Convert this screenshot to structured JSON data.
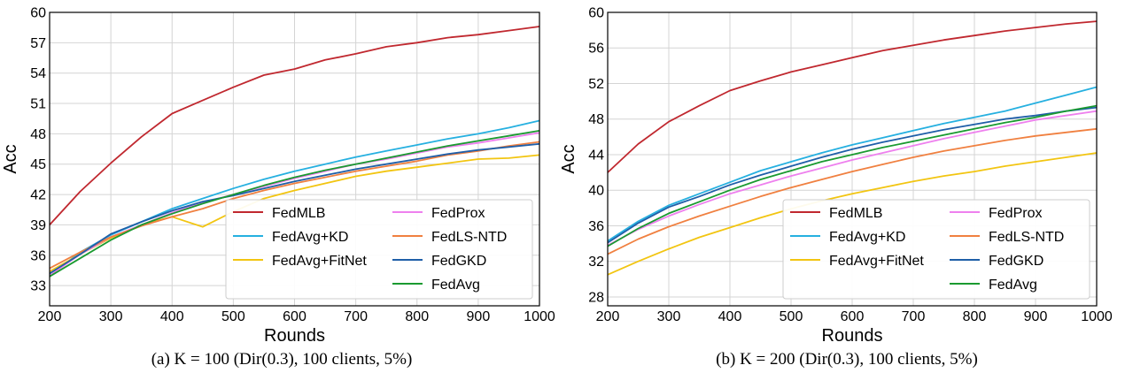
{
  "figure": {
    "colors": {
      "FedMLB": "#c0282f",
      "FedAvg+KD": "#26b0e0",
      "FedAvg+FitNet": "#f2c511",
      "FedProx": "#ee80ee",
      "FedLS-NTD": "#f08040",
      "FedGKD": "#1f5fa8",
      "FedAvg": "#1a9a30"
    }
  },
  "chart_data": [
    {
      "type": "line",
      "caption": "(a) K = 100 (Dir(0.3), 100 clients, 5%)",
      "xlabel": "Rounds",
      "ylabel": "Acc",
      "xlim": [
        200,
        1000
      ],
      "ylim": [
        31,
        60
      ],
      "xticks": [
        200,
        300,
        400,
        500,
        600,
        700,
        800,
        900,
        1000
      ],
      "yticks": [
        33,
        36,
        39,
        42,
        45,
        48,
        51,
        54,
        57,
        60
      ],
      "grid": true,
      "legend": {
        "position": "bottom-right",
        "columns": 2,
        "order": [
          "FedMLB",
          "FedProx",
          "FedAvg+KD",
          "FedLS-NTD",
          "FedAvg+FitNet",
          "FedGKD",
          "FedAvg"
        ]
      },
      "x": [
        200,
        250,
        300,
        350,
        400,
        450,
        500,
        550,
        600,
        650,
        700,
        750,
        800,
        850,
        900,
        950,
        1000
      ],
      "series": [
        {
          "name": "FedMLB",
          "values": [
            39.0,
            42.3,
            45.1,
            47.7,
            50.0,
            51.3,
            52.6,
            53.8,
            54.4,
            55.3,
            55.9,
            56.6,
            57.0,
            57.5,
            57.8,
            58.2,
            58.6
          ]
        },
        {
          "name": "FedAvg+KD",
          "values": [
            34.0,
            36.3,
            38.0,
            39.3,
            40.6,
            41.6,
            42.6,
            43.5,
            44.3,
            45.0,
            45.7,
            46.3,
            46.9,
            47.5,
            48.0,
            48.6,
            49.3
          ]
        },
        {
          "name": "FedAvg+FitNet",
          "values": [
            34.4,
            36.1,
            37.7,
            39.0,
            39.8,
            38.8,
            40.3,
            41.6,
            42.4,
            43.1,
            43.8,
            44.3,
            44.7,
            45.1,
            45.5,
            45.6,
            45.9
          ]
        },
        {
          "name": "FedProx",
          "values": [
            34.0,
            36.1,
            37.8,
            39.0,
            40.2,
            41.2,
            42.0,
            42.8,
            43.6,
            44.3,
            45.0,
            45.5,
            46.1,
            46.7,
            47.1,
            47.6,
            48.1
          ]
        },
        {
          "name": "FedLS-NTD",
          "values": [
            34.7,
            36.3,
            37.8,
            38.9,
            39.8,
            40.6,
            41.6,
            42.4,
            43.1,
            43.7,
            44.3,
            44.8,
            45.3,
            45.9,
            46.3,
            46.8,
            47.2
          ]
        },
        {
          "name": "FedGKD",
          "values": [
            34.2,
            36.1,
            38.1,
            39.3,
            40.4,
            41.3,
            41.9,
            42.6,
            43.3,
            43.9,
            44.5,
            45.0,
            45.5,
            46.0,
            46.4,
            46.7,
            47.0
          ]
        },
        {
          "name": "FedAvg",
          "values": [
            33.9,
            35.7,
            37.5,
            39.0,
            40.1,
            41.1,
            42.0,
            42.9,
            43.7,
            44.4,
            45.0,
            45.6,
            46.2,
            46.8,
            47.3,
            47.8,
            48.3
          ]
        }
      ]
    },
    {
      "type": "line",
      "caption": "(b) K = 200 (Dir(0.3), 100 clients, 5%)",
      "xlabel": "Rounds",
      "ylabel": "Acc",
      "xlim": [
        200,
        1000
      ],
      "ylim": [
        27,
        60
      ],
      "xticks": [
        200,
        300,
        400,
        500,
        600,
        700,
        800,
        900,
        1000
      ],
      "yticks": [
        28,
        32,
        36,
        40,
        44,
        48,
        52,
        56,
        60
      ],
      "grid": true,
      "legend": {
        "position": "bottom-right",
        "columns": 2,
        "order": [
          "FedMLB",
          "FedProx",
          "FedAvg+KD",
          "FedLS-NTD",
          "FedAvg+FitNet",
          "FedGKD",
          "FedAvg"
        ]
      },
      "x": [
        200,
        250,
        300,
        350,
        400,
        450,
        500,
        550,
        600,
        650,
        700,
        750,
        800,
        850,
        900,
        950,
        1000
      ],
      "series": [
        {
          "name": "FedMLB",
          "values": [
            42.0,
            45.2,
            47.7,
            49.5,
            51.2,
            52.3,
            53.3,
            54.1,
            54.9,
            55.7,
            56.3,
            56.9,
            57.4,
            57.9,
            58.3,
            58.7,
            59.0
          ]
        },
        {
          "name": "FedAvg+KD",
          "values": [
            34.3,
            36.5,
            38.3,
            39.6,
            40.9,
            42.2,
            43.2,
            44.2,
            45.1,
            45.9,
            46.7,
            47.5,
            48.2,
            48.9,
            49.8,
            50.7,
            51.6
          ]
        },
        {
          "name": "FedAvg+FitNet",
          "values": [
            30.5,
            32.0,
            33.4,
            34.7,
            35.8,
            36.9,
            37.9,
            38.8,
            39.6,
            40.3,
            41.0,
            41.6,
            42.1,
            42.7,
            43.2,
            43.7,
            44.2
          ]
        },
        {
          "name": "FedProx",
          "values": [
            33.8,
            35.6,
            37.1,
            38.4,
            39.6,
            40.6,
            41.6,
            42.5,
            43.4,
            44.2,
            45.0,
            45.8,
            46.5,
            47.2,
            47.9,
            48.4,
            48.9
          ]
        },
        {
          "name": "FedLS-NTD",
          "values": [
            32.8,
            34.5,
            35.9,
            37.1,
            38.2,
            39.3,
            40.3,
            41.2,
            42.1,
            42.9,
            43.7,
            44.4,
            45.0,
            45.6,
            46.1,
            46.5,
            46.9
          ]
        },
        {
          "name": "FedGKD",
          "values": [
            34.1,
            36.3,
            38.1,
            39.3,
            40.6,
            41.7,
            42.7,
            43.7,
            44.6,
            45.4,
            46.1,
            46.8,
            47.4,
            48.0,
            48.4,
            48.9,
            49.3
          ]
        },
        {
          "name": "FedAvg",
          "values": [
            33.7,
            35.7,
            37.4,
            38.7,
            40.0,
            41.2,
            42.2,
            43.2,
            44.0,
            44.8,
            45.5,
            46.2,
            46.9,
            47.6,
            48.2,
            48.9,
            49.5
          ]
        }
      ]
    }
  ]
}
